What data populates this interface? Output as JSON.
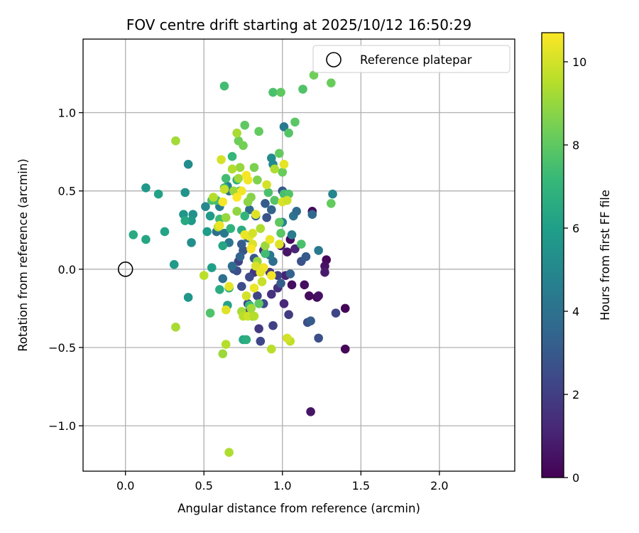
{
  "chart_data": {
    "type": "scatter",
    "title": "FOV centre drift starting at 2025/10/12 16:50:29",
    "xlabel": "Angular distance from reference (arcmin)",
    "ylabel": "Rotation from reference (arcmin)",
    "xlim": [
      -0.27,
      2.48
    ],
    "ylim": [
      -1.29,
      1.47
    ],
    "xticks": [
      0.0,
      0.5,
      1.0,
      1.5,
      2.0
    ],
    "xtick_labels": [
      "0.0",
      "0.5",
      "1.0",
      "1.5",
      "2.0"
    ],
    "yticks": [
      -1.0,
      -0.5,
      0.0,
      0.5,
      1.0
    ],
    "ytick_labels": [
      "−1.0",
      "−0.5",
      "0.0",
      "0.5",
      "1.0"
    ],
    "grid": true,
    "legend": {
      "placement": "top-right",
      "entries": [
        {
          "label": "Reference platepar",
          "marker": "open-circle"
        }
      ]
    },
    "reference_point": {
      "x": 0.0,
      "y": 0.0
    },
    "colorbar": {
      "label": "Hours from first FF file",
      "colormap": "viridis",
      "range": [
        0,
        10.7
      ],
      "ticks": [
        0,
        2,
        4,
        6,
        8,
        10
      ],
      "tick_labels": [
        "0",
        "2",
        "4",
        "6",
        "8",
        "10"
      ],
      "colors": [
        "#440154",
        "#482878",
        "#3e4989",
        "#31688e",
        "#26828e",
        "#1f9e89",
        "#35b779",
        "#6ece58",
        "#b5de2b",
        "#fde725"
      ]
    },
    "points": [
      [
        1.19,
        0.37,
        0.2
      ],
      [
        1.22,
        -0.18,
        0.3
      ],
      [
        1.14,
        -0.1,
        0.4
      ],
      [
        1.17,
        -0.17,
        0.3
      ],
      [
        1.28,
        0.06,
        0.2
      ],
      [
        1.4,
        -0.25,
        0.1
      ],
      [
        1.4,
        -0.51,
        0.2
      ],
      [
        1.18,
        -0.91,
        0.6
      ],
      [
        1.23,
        -0.17,
        0.5
      ],
      [
        1.27,
        0.02,
        0.5
      ],
      [
        1.27,
        -0.02,
        0.8
      ],
      [
        1.05,
        0.19,
        0.3
      ],
      [
        1.06,
        -0.1,
        0.4
      ],
      [
        1.03,
        0.11,
        0.6
      ],
      [
        0.99,
        0.15,
        0.9
      ],
      [
        1.08,
        0.13,
        1.1
      ],
      [
        1.02,
        -0.04,
        1.0
      ],
      [
        0.97,
        -0.12,
        1.5
      ],
      [
        1.01,
        -0.22,
        1.2
      ],
      [
        1.04,
        -0.29,
        1.9
      ],
      [
        0.94,
        -0.36,
        2.1
      ],
      [
        0.85,
        -0.38,
        1.8
      ],
      [
        0.86,
        -0.46,
        2.3
      ],
      [
        0.93,
        -0.16,
        1.6
      ],
      [
        0.88,
        0.12,
        1.3
      ],
      [
        0.92,
        -0.02,
        1.8
      ],
      [
        0.97,
        -0.04,
        2.0
      ],
      [
        0.84,
        -0.17,
        2.2
      ],
      [
        0.82,
        -0.02,
        1.7
      ],
      [
        0.79,
        -0.05,
        2.4
      ],
      [
        0.74,
        -0.11,
        2.5
      ],
      [
        0.71,
        -0.01,
        2.6
      ],
      [
        0.69,
        0.0,
        2.7
      ],
      [
        0.72,
        0.05,
        2.1
      ],
      [
        0.75,
        0.12,
        2.8
      ],
      [
        0.82,
        0.07,
        2.9
      ],
      [
        0.78,
        -0.22,
        2.3
      ],
      [
        0.8,
        -0.25,
        2.0
      ],
      [
        0.77,
        -0.28,
        1.9
      ],
      [
        0.88,
        -0.22,
        2.4
      ],
      [
        1.16,
        -0.34,
        2.6
      ],
      [
        1.18,
        -0.33,
        3.1
      ],
      [
        1.34,
        -0.28,
        2.2
      ],
      [
        1.23,
        -0.44,
        2.6
      ],
      [
        1.12,
        0.05,
        2.7
      ],
      [
        1.15,
        0.08,
        3.0
      ],
      [
        1.05,
        -0.03,
        3.3
      ],
      [
        0.99,
        -0.09,
        3.2
      ],
      [
        1.0,
        0.5,
        3.0
      ],
      [
        0.89,
        0.42,
        3.1
      ],
      [
        0.93,
        0.38,
        3.4
      ],
      [
        0.9,
        0.33,
        2.8
      ],
      [
        0.83,
        0.34,
        3.5
      ],
      [
        0.79,
        0.38,
        3.7
      ],
      [
        0.78,
        0.2,
        3.6
      ],
      [
        0.74,
        0.16,
        3.2
      ],
      [
        0.73,
        0.08,
        3.4
      ],
      [
        0.68,
        0.02,
        3.8
      ],
      [
        0.62,
        -0.06,
        3.9
      ],
      [
        0.66,
        0.17,
        4.2
      ],
      [
        0.63,
        0.23,
        4.4
      ],
      [
        0.58,
        0.24,
        4.0
      ],
      [
        0.6,
        0.4,
        4.6
      ],
      [
        0.66,
        0.5,
        4.2
      ],
      [
        0.65,
        0.53,
        4.7
      ],
      [
        0.94,
        0.05,
        3.9
      ],
      [
        0.92,
        0.09,
        4.3
      ],
      [
        1.01,
        0.91,
        4.4
      ],
      [
        1.07,
        0.34,
        4.1
      ],
      [
        1.09,
        0.37,
        3.7
      ],
      [
        1.06,
        0.22,
        4.5
      ],
      [
        1.32,
        0.48,
        4.9
      ],
      [
        1.23,
        0.12,
        4.4
      ],
      [
        1.19,
        0.35,
        3.6
      ],
      [
        1.0,
        0.3,
        4.8
      ],
      [
        0.93,
        0.71,
        5.2
      ],
      [
        0.94,
        0.67,
        5.1
      ],
      [
        0.4,
        0.67,
        5.2
      ],
      [
        0.38,
        0.49,
        5.5
      ],
      [
        0.37,
        0.35,
        5.6
      ],
      [
        0.43,
        0.35,
        5.4
      ],
      [
        0.42,
        0.31,
        5.7
      ],
      [
        0.42,
        0.17,
        5.3
      ],
      [
        0.51,
        0.4,
        5.0
      ],
      [
        0.54,
        0.34,
        5.8
      ],
      [
        0.52,
        0.24,
        5.9
      ],
      [
        0.55,
        0.01,
        6.0
      ],
      [
        0.4,
        -0.18,
        5.6
      ],
      [
        0.31,
        0.03,
        5.8
      ],
      [
        0.25,
        0.24,
        6.2
      ],
      [
        0.21,
        0.48,
        6.1
      ],
      [
        0.13,
        0.52,
        5.7
      ],
      [
        0.13,
        0.19,
        6.3
      ],
      [
        0.05,
        0.22,
        6.5
      ],
      [
        0.38,
        0.31,
        6.4
      ],
      [
        0.62,
        0.15,
        6.3
      ],
      [
        0.6,
        -0.13,
        6.6
      ],
      [
        0.65,
        -0.23,
        6.2
      ],
      [
        0.66,
        -0.12,
        6.8
      ],
      [
        0.75,
        -0.45,
        6.4
      ],
      [
        0.77,
        -0.45,
        6.7
      ],
      [
        0.74,
        0.25,
        6.6
      ],
      [
        0.67,
        0.26,
        6.9
      ],
      [
        0.71,
        0.57,
        6.7
      ],
      [
        0.73,
        0.5,
        6.8
      ],
      [
        0.76,
        0.34,
        7.0
      ],
      [
        0.68,
        0.72,
        7.1
      ],
      [
        0.63,
        0.52,
        7.2
      ],
      [
        0.64,
        0.58,
        7.4
      ],
      [
        0.6,
        0.32,
        7.3
      ],
      [
        0.58,
        0.44,
        7.5
      ],
      [
        0.55,
        0.44,
        7.6
      ],
      [
        0.54,
        -0.28,
        7.7
      ],
      [
        0.79,
        -0.23,
        7.2
      ],
      [
        0.81,
        -0.3,
        7.9
      ],
      [
        0.85,
        -0.22,
        8.0
      ],
      [
        0.89,
        0.1,
        7.4
      ],
      [
        0.91,
        0.49,
        7.6
      ],
      [
        0.95,
        0.44,
        7.8
      ],
      [
        1.01,
        0.48,
        7.5
      ],
      [
        1.04,
        0.48,
        7.7
      ],
      [
        1.12,
        0.16,
        7.6
      ],
      [
        0.99,
        0.23,
        7.9
      ],
      [
        0.98,
        0.3,
        8.0
      ],
      [
        0.98,
        0.74,
        8.1
      ],
      [
        1.04,
        0.87,
        7.8
      ],
      [
        1.08,
        0.94,
        7.9
      ],
      [
        1.0,
        0.62,
        8.2
      ],
      [
        0.85,
        0.88,
        8.1
      ],
      [
        0.76,
        0.92,
        8.0
      ],
      [
        0.72,
        0.82,
        8.3
      ],
      [
        0.63,
        1.17,
        7.4
      ],
      [
        0.94,
        1.13,
        7.6
      ],
      [
        0.99,
        1.13,
        8.0
      ],
      [
        1.13,
        1.15,
        7.7
      ],
      [
        1.2,
        1.24,
        8.3
      ],
      [
        1.31,
        1.19,
        8.2
      ],
      [
        1.31,
        0.42,
        8.1
      ],
      [
        0.75,
        0.79,
        8.4
      ],
      [
        0.82,
        0.65,
        8.5
      ],
      [
        0.84,
        0.57,
        8.6
      ],
      [
        0.8,
        0.46,
        8.7
      ],
      [
        0.78,
        0.43,
        8.8
      ],
      [
        0.71,
        0.37,
        8.9
      ],
      [
        0.64,
        0.33,
        9.0
      ],
      [
        0.69,
        0.5,
        9.1
      ],
      [
        0.72,
        0.58,
        9.2
      ],
      [
        0.71,
        0.87,
        9.3
      ],
      [
        0.73,
        0.65,
        9.0
      ],
      [
        0.68,
        0.64,
        9.4
      ],
      [
        0.32,
        0.82,
        9.2
      ],
      [
        0.32,
        -0.37,
        9.3
      ],
      [
        0.5,
        -0.04,
        9.6
      ],
      [
        0.56,
        0.46,
        9.5
      ],
      [
        0.59,
        0.27,
        9.7
      ],
      [
        0.63,
        0.51,
        9.8
      ],
      [
        0.61,
        0.7,
        10.0
      ],
      [
        0.64,
        -0.26,
        10.2
      ],
      [
        0.64,
        -0.48,
        9.5
      ],
      [
        0.62,
        -0.54,
        9.1
      ],
      [
        0.66,
        -1.17,
        9.4
      ],
      [
        0.74,
        -0.27,
        9.3
      ],
      [
        0.75,
        -0.3,
        9.6
      ],
      [
        0.78,
        -0.3,
        9.9
      ],
      [
        0.8,
        -0.25,
        9.2
      ],
      [
        0.82,
        -0.3,
        9.5
      ],
      [
        0.86,
        0.26,
        9.4
      ],
      [
        0.87,
        -0.08,
        9.8
      ],
      [
        0.89,
        0.15,
        9.1
      ],
      [
        0.9,
        0.54,
        10.0
      ],
      [
        0.93,
        -0.51,
        9.6
      ],
      [
        0.95,
        0.64,
        9.4
      ],
      [
        1.0,
        0.43,
        10.1
      ],
      [
        1.01,
        0.67,
        10.3
      ],
      [
        1.03,
        0.44,
        9.9
      ],
      [
        1.05,
        -0.46,
        9.7
      ],
      [
        1.03,
        -0.44,
        10.0
      ],
      [
        0.98,
        0.16,
        10.2
      ],
      [
        0.92,
        0.19,
        10.4
      ],
      [
        0.88,
        0.01,
        10.5
      ],
      [
        0.81,
        0.16,
        10.1
      ],
      [
        0.79,
        0.21,
        10.3
      ],
      [
        0.8,
        0.13,
        10.6
      ],
      [
        0.84,
        0.05,
        9.0
      ],
      [
        0.77,
        -0.17,
        10.0
      ],
      [
        0.82,
        -0.12,
        10.4
      ],
      [
        0.83,
        0.35,
        10.2
      ],
      [
        0.78,
        0.57,
        10.5
      ],
      [
        0.77,
        0.6,
        10.6
      ],
      [
        0.66,
        -0.11,
        10.3
      ],
      [
        0.6,
        0.28,
        10.4
      ],
      [
        0.62,
        0.43,
        10.6
      ],
      [
        0.74,
        0.5,
        10.5
      ],
      [
        0.71,
        0.46,
        10.7
      ],
      [
        0.83,
        0.02,
        10.1
      ],
      [
        0.86,
        -0.02,
        10.3
      ],
      [
        0.93,
        -0.04,
        10.5
      ],
      [
        0.76,
        0.22,
        10.4
      ],
      [
        0.81,
        0.23,
        10.0
      ]
    ]
  }
}
